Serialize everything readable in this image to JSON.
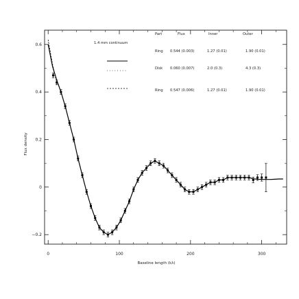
{
  "chart_data": {
    "type": "scatter",
    "xlabel": "Baseline length (kλ)",
    "ylabel": "Flux density",
    "xlim": [
      -5,
      335
    ],
    "ylim": [
      -0.24,
      0.66
    ],
    "x_ticks": [
      0,
      100,
      200,
      300
    ],
    "x_tick_labels": [
      "0",
      "100",
      "200",
      "300"
    ],
    "y_ticks": [
      -0.2,
      0,
      0.2,
      0.4,
      0.6
    ],
    "y_tick_labels": [
      "−0.2",
      "0",
      "0.2",
      "0.4",
      "0.6"
    ],
    "grid": false,
    "legend_position": "top-right",
    "legend_label": "1.4 mm continuum",
    "table": {
      "headers": [
        "Part",
        "Flux",
        "Inner",
        "Outer"
      ],
      "rows": [
        {
          "part": "Ring",
          "flux": "0.544 (0.003)",
          "inner": "1.27 (0.01)",
          "outer": "1.90 (0.01)",
          "line_style": "solid"
        },
        {
          "part": "Disk",
          "flux": "0.060 (0.007)",
          "inner": "2.0 (0.3)",
          "outer": "4.3 (0.3)",
          "line_style": "dotted"
        },
        {
          "part": "Ring",
          "flux": "0.547 (0.006)",
          "inner": "1.27 (0.01)",
          "outer": "1.90 (0.01)",
          "line_style": "dashed"
        }
      ]
    },
    "series": [
      {
        "kind": "data points with error bars",
        "points": [
          {
            "x": 7,
            "y": 0.47,
            "err": 0.01
          },
          {
            "x": 12,
            "y": 0.44,
            "err": 0.01
          },
          {
            "x": 18,
            "y": 0.4,
            "err": 0.01
          },
          {
            "x": 24,
            "y": 0.34,
            "err": 0.01
          },
          {
            "x": 30,
            "y": 0.27,
            "err": 0.01
          },
          {
            "x": 36,
            "y": 0.2,
            "err": 0.01
          },
          {
            "x": 42,
            "y": 0.12,
            "err": 0.01
          },
          {
            "x": 48,
            "y": 0.05,
            "err": 0.01
          },
          {
            "x": 54,
            "y": -0.02,
            "err": 0.01
          },
          {
            "x": 60,
            "y": -0.08,
            "err": 0.01
          },
          {
            "x": 66,
            "y": -0.13,
            "err": 0.01
          },
          {
            "x": 72,
            "y": -0.17,
            "err": 0.01
          },
          {
            "x": 78,
            "y": -0.19,
            "err": 0.01
          },
          {
            "x": 84,
            "y": -0.2,
            "err": 0.01
          },
          {
            "x": 90,
            "y": -0.19,
            "err": 0.01
          },
          {
            "x": 96,
            "y": -0.17,
            "err": 0.01
          },
          {
            "x": 102,
            "y": -0.14,
            "err": 0.01
          },
          {
            "x": 108,
            "y": -0.1,
            "err": 0.01
          },
          {
            "x": 114,
            "y": -0.06,
            "err": 0.01
          },
          {
            "x": 120,
            "y": -0.01,
            "err": 0.01
          },
          {
            "x": 126,
            "y": 0.03,
            "err": 0.01
          },
          {
            "x": 132,
            "y": 0.06,
            "err": 0.01
          },
          {
            "x": 138,
            "y": 0.08,
            "err": 0.01
          },
          {
            "x": 144,
            "y": 0.1,
            "err": 0.01
          },
          {
            "x": 150,
            "y": 0.11,
            "err": 0.01
          },
          {
            "x": 156,
            "y": 0.1,
            "err": 0.01
          },
          {
            "x": 162,
            "y": 0.09,
            "err": 0.01
          },
          {
            "x": 168,
            "y": 0.07,
            "err": 0.01
          },
          {
            "x": 174,
            "y": 0.05,
            "err": 0.01
          },
          {
            "x": 180,
            "y": 0.03,
            "err": 0.01
          },
          {
            "x": 186,
            "y": 0.01,
            "err": 0.01
          },
          {
            "x": 192,
            "y": -0.01,
            "err": 0.01
          },
          {
            "x": 198,
            "y": -0.02,
            "err": 0.01
          },
          {
            "x": 204,
            "y": -0.02,
            "err": 0.01
          },
          {
            "x": 210,
            "y": -0.01,
            "err": 0.01
          },
          {
            "x": 216,
            "y": 0.0,
            "err": 0.01
          },
          {
            "x": 222,
            "y": 0.01,
            "err": 0.01
          },
          {
            "x": 228,
            "y": 0.02,
            "err": 0.01
          },
          {
            "x": 234,
            "y": 0.02,
            "err": 0.01
          },
          {
            "x": 240,
            "y": 0.03,
            "err": 0.01
          },
          {
            "x": 246,
            "y": 0.03,
            "err": 0.01
          },
          {
            "x": 252,
            "y": 0.04,
            "err": 0.01
          },
          {
            "x": 258,
            "y": 0.04,
            "err": 0.01
          },
          {
            "x": 264,
            "y": 0.04,
            "err": 0.01
          },
          {
            "x": 270,
            "y": 0.04,
            "err": 0.01
          },
          {
            "x": 276,
            "y": 0.04,
            "err": 0.01
          },
          {
            "x": 282,
            "y": 0.04,
            "err": 0.01
          },
          {
            "x": 288,
            "y": 0.03,
            "err": 0.012
          },
          {
            "x": 294,
            "y": 0.04,
            "err": 0.012
          },
          {
            "x": 300,
            "y": 0.04,
            "err": 0.015
          },
          {
            "x": 306,
            "y": 0.04,
            "err": 0.06
          }
        ]
      },
      {
        "kind": "model curve",
        "line_style": "solid",
        "x": [
          0,
          6,
          12,
          18,
          24,
          30,
          36,
          42,
          48,
          54,
          60,
          66,
          72,
          78,
          84,
          90,
          96,
          102,
          108,
          114,
          120,
          126,
          132,
          138,
          144,
          150,
          156,
          162,
          168,
          174,
          180,
          186,
          192,
          198,
          204,
          210,
          216,
          222,
          228,
          234,
          240,
          246,
          252,
          258,
          264,
          270,
          276,
          282,
          288,
          294,
          300,
          306,
          312,
          318,
          324,
          330
        ],
        "y": [
          0.6,
          0.51,
          0.45,
          0.4,
          0.34,
          0.27,
          0.2,
          0.12,
          0.05,
          -0.02,
          -0.08,
          -0.13,
          -0.17,
          -0.19,
          -0.2,
          -0.19,
          -0.17,
          -0.14,
          -0.1,
          -0.06,
          -0.01,
          0.03,
          0.06,
          0.08,
          0.1,
          0.11,
          0.1,
          0.09,
          0.07,
          0.05,
          0.03,
          0.01,
          -0.01,
          -0.02,
          -0.02,
          -0.01,
          0.0,
          0.01,
          0.02,
          0.02,
          0.03,
          0.03,
          0.04,
          0.04,
          0.04,
          0.04,
          0.04,
          0.04,
          0.035,
          0.033,
          0.032,
          0.032,
          0.032,
          0.033,
          0.034,
          0.034
        ]
      },
      {
        "kind": "model curve",
        "line_style": "dashed",
        "x": [
          0,
          3,
          6,
          9,
          12
        ],
        "y": [
          0.62,
          0.57,
          0.52,
          0.48,
          0.45
        ]
      },
      {
        "kind": "model curve",
        "line_style": "dotted",
        "x": [
          0,
          3,
          6,
          9,
          12
        ],
        "y": [
          0.61,
          0.56,
          0.51,
          0.47,
          0.44
        ]
      }
    ]
  }
}
